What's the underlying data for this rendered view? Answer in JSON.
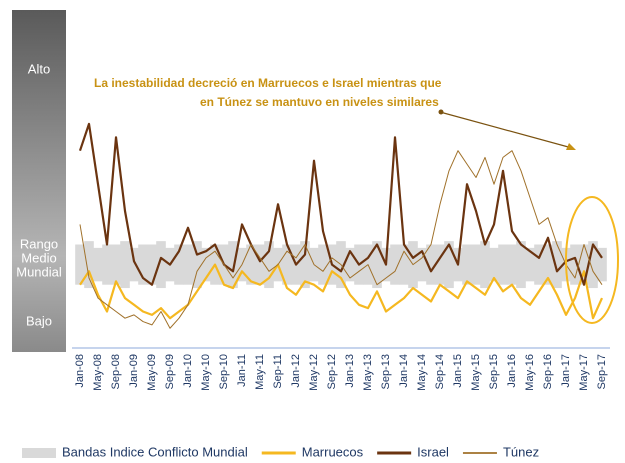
{
  "chart_data": {
    "type": "line",
    "annotation": [
      "La inestabilidad decreció en Marruecos e Israel mientras que",
      "en Túnez se mantuvo en niveles similares"
    ],
    "side_labels": {
      "high": "Alto",
      "mid": [
        "Rango",
        "Medio",
        "Mundial"
      ],
      "low": "Bajo"
    },
    "categories": [
      "Jan-08",
      null,
      "May-08",
      null,
      "Sep-08",
      null,
      "Jan-09",
      null,
      "May-09",
      null,
      "Sep-09",
      null,
      "Jan-10",
      null,
      "May-10",
      null,
      "Sep-10",
      null,
      "Jan-11",
      null,
      "May-11",
      null,
      "Sep-11",
      null,
      "Jan-12",
      null,
      "May-12",
      null,
      "Sep-12",
      null,
      "Jan-13",
      null,
      "May-13",
      null,
      "Sep-13",
      null,
      "Jan-14",
      null,
      "May-14",
      null,
      "Sep-14",
      null,
      "Jan-15",
      null,
      "May-15",
      null,
      "Sep-15",
      null,
      "Jan-16",
      null,
      "May-16",
      null,
      "Sep-16",
      null,
      "Jan-17",
      null,
      "May-17",
      null,
      "Sep-17"
    ],
    "ylim": [
      0,
      100
    ],
    "series": [
      {
        "name": "Bandas Indice Conflicto Mundial",
        "color": "#d9d9d9",
        "lower": [
          18,
          17,
          19,
          18,
          18,
          17,
          19,
          18,
          18,
          17,
          19,
          18,
          18,
          17,
          19,
          18,
          18,
          17,
          19,
          18,
          18,
          17,
          19,
          18,
          18,
          17,
          19,
          18,
          18,
          17,
          19,
          18,
          18,
          17,
          19,
          18,
          18,
          17,
          19,
          18,
          18,
          17,
          19,
          18,
          18,
          17,
          19,
          18,
          18,
          17,
          19,
          18,
          18,
          17,
          19,
          18,
          18,
          17,
          19
        ],
        "upper": [
          30,
          31,
          29,
          30,
          30,
          31,
          29,
          30,
          30,
          31,
          29,
          30,
          30,
          31,
          29,
          30,
          30,
          31,
          29,
          30,
          30,
          31,
          29,
          30,
          30,
          31,
          29,
          30,
          30,
          31,
          29,
          30,
          30,
          31,
          29,
          30,
          30,
          31,
          29,
          30,
          30,
          31,
          29,
          30,
          30,
          31,
          29,
          30,
          30,
          31,
          29,
          30,
          30,
          31,
          29,
          30,
          30,
          31,
          29
        ]
      },
      {
        "name": "Marruecos",
        "color": "#f5b820",
        "width": 2.2,
        "values": [
          18,
          22,
          15,
          10,
          19,
          14,
          12,
          10,
          9,
          11,
          8,
          10,
          12,
          16,
          20,
          24,
          18,
          17,
          22,
          19,
          18,
          20,
          24,
          17,
          15,
          19,
          18,
          16,
          22,
          20,
          15,
          12,
          11,
          16,
          10,
          12,
          14,
          17,
          15,
          13,
          18,
          16,
          14,
          19,
          17,
          15,
          20,
          16,
          18,
          14,
          12,
          16,
          20,
          15,
          9,
          14,
          22,
          8,
          14
        ]
      },
      {
        "name": "Israel",
        "color": "#6b3410",
        "width": 2.2,
        "values": [
          58,
          66,
          48,
          30,
          62,
          40,
          25,
          20,
          18,
          26,
          24,
          28,
          35,
          27,
          28,
          30,
          24,
          22,
          36,
          30,
          25,
          28,
          42,
          30,
          24,
          27,
          55,
          34,
          24,
          22,
          28,
          24,
          26,
          30,
          24,
          62,
          30,
          26,
          28,
          22,
          26,
          30,
          24,
          48,
          40,
          30,
          36,
          52,
          34,
          30,
          28,
          26,
          32,
          22,
          25,
          26,
          18,
          30,
          26
        ]
      },
      {
        "name": "Túnez",
        "color": "#a0712a",
        "width": 1,
        "values": [
          36,
          20,
          14,
          12,
          10,
          8,
          9,
          7,
          6,
          10,
          5,
          8,
          12,
          22,
          26,
          28,
          24,
          20,
          24,
          30,
          26,
          22,
          24,
          28,
          26,
          30,
          24,
          22,
          26,
          24,
          20,
          22,
          24,
          18,
          20,
          22,
          28,
          24,
          26,
          30,
          42,
          52,
          58,
          54,
          50,
          56,
          48,
          56,
          58,
          52,
          44,
          36,
          38,
          30,
          24,
          20,
          30,
          22,
          18
        ]
      }
    ]
  }
}
